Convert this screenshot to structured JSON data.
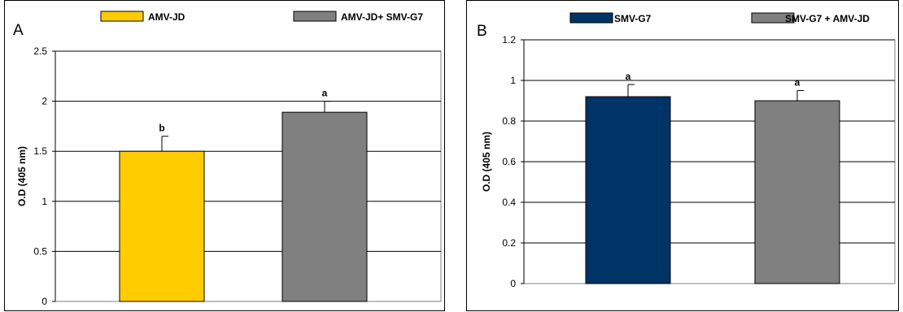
{
  "chart_data": [
    {
      "panel_label": "A",
      "type": "bar",
      "categories": [
        "AMV-JD",
        "AMV-JD+ SMV-G7"
      ],
      "values": [
        1.5,
        1.89
      ],
      "errors": [
        0.15,
        0.11
      ],
      "significance": [
        "b",
        "a"
      ],
      "colors": [
        "#FFCC00",
        "#808080"
      ],
      "legend": [
        "AMV-JD",
        "AMV-JD+ SMV-G7"
      ],
      "ylabel": "O.D (405 nm)",
      "xlabel": "",
      "ylim": [
        0,
        2.5
      ],
      "yticks": [
        "0",
        "0.5",
        "1",
        "1.5",
        "2",
        "2.5"
      ],
      "ytick_values": [
        0,
        0.5,
        1,
        1.5,
        2,
        2.5
      ],
      "grid": true,
      "legend_position": "top"
    },
    {
      "panel_label": "B",
      "type": "bar",
      "categories": [
        "SMV-G7",
        "SMV-G7 + AMV-JD"
      ],
      "values": [
        0.92,
        0.9
      ],
      "errors": [
        0.06,
        0.05
      ],
      "significance": [
        "a",
        "a"
      ],
      "colors": [
        "#003366",
        "#808080"
      ],
      "legend": [
        "SMV-G7",
        "SMV-G7 + AMV-JD"
      ],
      "ylabel": "O.D (405 nm)",
      "xlabel": "",
      "ylim": [
        0,
        1.2
      ],
      "yticks": [
        "0",
        "0.2",
        "0.4",
        "0.6",
        "0.8",
        "1",
        "1.2"
      ],
      "ytick_values": [
        0,
        0.2,
        0.4,
        0.6,
        0.8,
        1,
        1.2
      ],
      "grid": true,
      "legend_position": "top"
    }
  ]
}
